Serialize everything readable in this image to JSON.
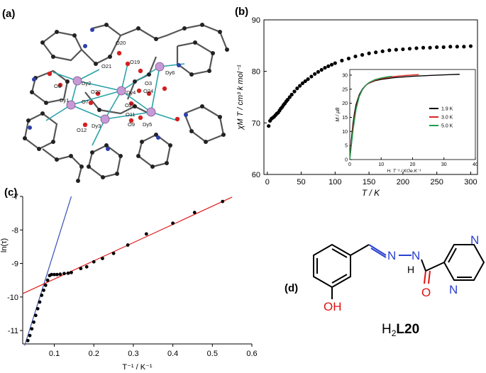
{
  "panels": {
    "a": "(a)",
    "b": "(b)",
    "c": "(c)",
    "d": "(d)"
  },
  "structure": {
    "atom_labels": [
      "O20",
      "O21",
      "O19",
      "Dy6",
      "Dy2",
      "O6",
      "O22",
      "Dy4",
      "O3",
      "O24",
      "Dy1",
      "O7",
      "O23",
      "O11",
      "Dy5",
      "O12",
      "Dy3",
      "O9"
    ]
  },
  "molecule": {
    "name_H": "H",
    "name_sub": "2",
    "name_L": "L20",
    "atoms": {
      "N1": "N",
      "N2": "N",
      "OH": "OH",
      "O": "O",
      "N3": "N",
      "N4": "N",
      "NH": "H"
    }
  },
  "chart_data": [
    {
      "id": "b-main",
      "type": "scatter",
      "xlabel": "T / K",
      "ylabel": "χM T / cm³ k mol⁻¹",
      "xlim": [
        -5,
        310
      ],
      "ylim": [
        60,
        90
      ],
      "xticks": [
        0,
        50,
        100,
        150,
        200,
        250,
        300
      ],
      "yticks": [
        60,
        70,
        80,
        90
      ],
      "marker_color": "#000000",
      "series": [
        {
          "x": [
            2,
            4,
            6,
            8,
            10,
            12,
            14,
            16,
            18,
            20,
            22,
            24,
            26,
            28,
            30,
            33,
            36,
            40,
            44,
            48,
            52,
            56,
            60,
            65,
            70,
            75,
            80,
            85,
            90,
            95,
            100,
            110,
            120,
            130,
            140,
            150,
            160,
            170,
            180,
            190,
            200,
            210,
            220,
            230,
            240,
            250,
            260,
            270,
            280,
            290,
            300
          ],
          "y": [
            69.4,
            70.4,
            70.8,
            71.0,
            71.2,
            71.5,
            71.8,
            72.0,
            72.4,
            72.8,
            73.1,
            73.5,
            73.8,
            74.2,
            74.5,
            75.0,
            75.5,
            76.1,
            76.7,
            77.2,
            77.7,
            78.1,
            78.5,
            79.0,
            79.5,
            79.9,
            80.3,
            80.7,
            81.0,
            81.3,
            81.6,
            82.1,
            82.5,
            82.9,
            83.2,
            83.5,
            83.7,
            83.9,
            84.1,
            84.2,
            84.3,
            84.4,
            84.5,
            84.6,
            84.6,
            84.7,
            84.7,
            84.8,
            84.8,
            84.8,
            84.9
          ]
        }
      ]
    },
    {
      "id": "b-inset",
      "type": "line",
      "xlabel": "H. T⁻¹ / KOe.K⁻¹",
      "ylabel": "M / μB",
      "xlim": [
        0,
        40
      ],
      "ylim": [
        0,
        32
      ],
      "xticks": [
        0,
        10,
        20,
        30,
        40
      ],
      "yticks": [
        0,
        5,
        10,
        15,
        20,
        25,
        30
      ],
      "legend_position": "center-right",
      "series": [
        {
          "name": "1.9 K",
          "color": "#000000",
          "x": [
            0,
            0.5,
            1,
            1.5,
            2,
            3,
            4,
            5,
            6,
            8,
            10,
            14,
            20,
            26,
            30,
            35
          ],
          "y": [
            0,
            7,
            12.5,
            16.5,
            19.5,
            23,
            25,
            26.3,
            27.1,
            28,
            28.5,
            29.1,
            29.6,
            29.9,
            30.1,
            30.3
          ]
        },
        {
          "name": "3.0 K",
          "color": "#e02020",
          "x": [
            0,
            1,
            1.5,
            2,
            3,
            4,
            5,
            6,
            8,
            10,
            14,
            18,
            22
          ],
          "y": [
            0,
            11,
            15,
            18.3,
            22.5,
            24.8,
            26.2,
            27.2,
            28.2,
            28.8,
            29.5,
            29.9,
            30.2
          ]
        },
        {
          "name": "5.0 K",
          "color": "#1aa050",
          "x": [
            0,
            1,
            1.5,
            2,
            3,
            4,
            5,
            6,
            8,
            10,
            12,
            13.5
          ],
          "y": [
            0,
            10,
            14,
            17.8,
            22.3,
            24.8,
            26.3,
            27.3,
            28.4,
            29,
            29.4,
            29.6
          ]
        }
      ]
    },
    {
      "id": "c",
      "type": "scatter",
      "xlabel": "T⁻¹ / K⁻¹",
      "ylabel": "ln(τ)",
      "xlim": [
        0.02,
        0.6
      ],
      "ylim": [
        -11.4,
        -7
      ],
      "xticks": [
        0.1,
        0.2,
        0.3,
        0.4,
        0.5,
        0.6
      ],
      "yticks": [
        -7,
        -8,
        -9,
        -10,
        -11
      ],
      "series": [
        {
          "name": "points",
          "color": "#000000",
          "x": [
            0.033,
            0.038,
            0.043,
            0.048,
            0.053,
            0.058,
            0.063,
            0.068,
            0.073,
            0.078,
            0.083,
            0.088,
            0.093,
            0.1,
            0.107,
            0.115,
            0.125,
            0.135,
            0.143,
            0.167,
            0.182,
            0.2,
            0.222,
            0.25,
            0.286,
            0.333,
            0.4,
            0.455,
            0.526
          ],
          "y": [
            -11.3,
            -11.15,
            -10.95,
            -10.75,
            -10.55,
            -10.35,
            -10.15,
            -9.95,
            -9.8,
            -9.65,
            -9.5,
            -9.36,
            -9.33,
            -9.33,
            -9.33,
            -9.32,
            -9.3,
            -9.29,
            -9.27,
            -9.15,
            -9.1,
            -8.95,
            -8.85,
            -8.7,
            -8.45,
            -8.12,
            -7.8,
            -7.48,
            -7.15
          ]
        }
      ],
      "fits": [
        {
          "name": "high-T fit",
          "color": "#3a4fb5",
          "x": [
            0.025,
            0.143
          ],
          "y": [
            -11.45,
            -7.0
          ]
        },
        {
          "name": "low-T fit",
          "color": "#e01b1b",
          "x": [
            0.02,
            0.55
          ],
          "y": [
            -9.9,
            -7.02
          ]
        }
      ]
    }
  ]
}
